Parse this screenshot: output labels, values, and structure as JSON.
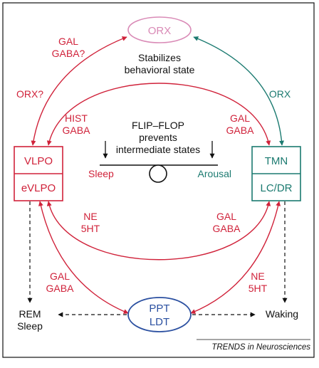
{
  "nodes": {
    "orx": "ORX",
    "vlpo": "VLPO",
    "evlpo": "eVLPO",
    "tmn": "TMN",
    "lcdr": "LC/DR",
    "ppt": "PPT",
    "ldt": "LDT"
  },
  "labels": {
    "gal_gaba_q_1": "GAL",
    "gal_gaba_q_2": "GABA?",
    "stabilizes_1": "Stabilizes",
    "stabilizes_2": "behavioral state",
    "orx_q": "ORX?",
    "orx_right": "ORX",
    "hist_gaba_1": "HIST",
    "hist_gaba_2": "GABA",
    "gal_gaba_tr_1": "GAL",
    "gal_gaba_tr_2": "GABA",
    "flipflop_1": "FLIP–FLOP",
    "flipflop_2": "prevents",
    "flipflop_3": "intermediate states",
    "sleep": "Sleep",
    "arousal": "Arousal",
    "ne5ht_l_1": "NE",
    "ne5ht_l_2": "5HT",
    "gal_gaba_mr_1": "GAL",
    "gal_gaba_mr_2": "GABA",
    "gal_gaba_bl_1": "GAL",
    "gal_gaba_bl_2": "GABA",
    "ne5ht_br_1": "NE",
    "ne5ht_br_2": "5HT",
    "rem_1": "REM",
    "rem_2": "Sleep",
    "waking": "Waking",
    "footer": "TRENDS in Neurosciences"
  },
  "colors": {
    "red": "#d0223a",
    "teal": "#1b7a70",
    "blue": "#2a4fa0",
    "pink": "#d98ab6",
    "black": "#111111"
  }
}
